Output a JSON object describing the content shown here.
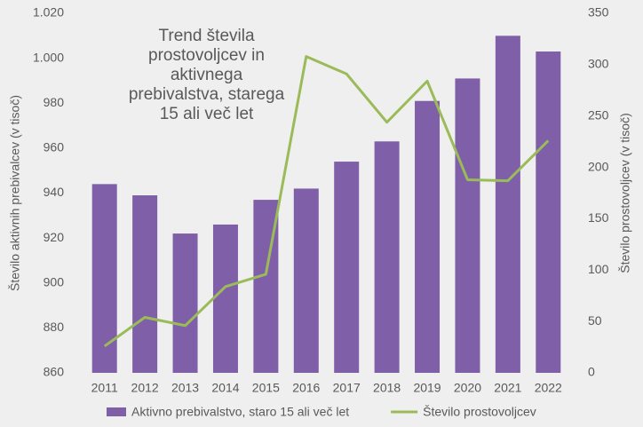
{
  "chart_data": {
    "type": "bar+line",
    "title": "Trend števila prostovoljcev in aktivnega prebivalstva, starega 15 ali več let",
    "y_label": "Število aktivnih prebivalcev (v tisoč)",
    "y2_label": "Število prostovoljcev (v tisoč)",
    "categories": [
      "2011",
      "2012",
      "2013",
      "2014",
      "2015",
      "2016",
      "2017",
      "2018",
      "2019",
      "2020",
      "2021",
      "2022"
    ],
    "series": [
      {
        "name": "Aktivno prebivalstvo, staro 15 ali več let",
        "type": "bar",
        "color": "#7f5fa8",
        "values": [
          944,
          939,
          922,
          926,
          937,
          942,
          954,
          963,
          981,
          991,
          1010,
          1003
        ]
      },
      {
        "name": "Število prostovoljcev",
        "type": "line",
        "axis": "y2",
        "color": "#9bbb59",
        "values": [
          26,
          54,
          46,
          84,
          96,
          308,
          291,
          244,
          284,
          188,
          187,
          226
        ]
      }
    ],
    "ylim": [
      860,
      1020
    ],
    "yticks": [
      860,
      880,
      900,
      920,
      940,
      960,
      980,
      {
        "value": 1000,
        "label": "1.000"
      },
      {
        "value": 1020,
        "label": "1.020"
      }
    ],
    "y2lim": [
      0,
      350
    ],
    "y2ticks": [
      0,
      50,
      100,
      150,
      200,
      250,
      300,
      350
    ],
    "legend": "bottom"
  }
}
